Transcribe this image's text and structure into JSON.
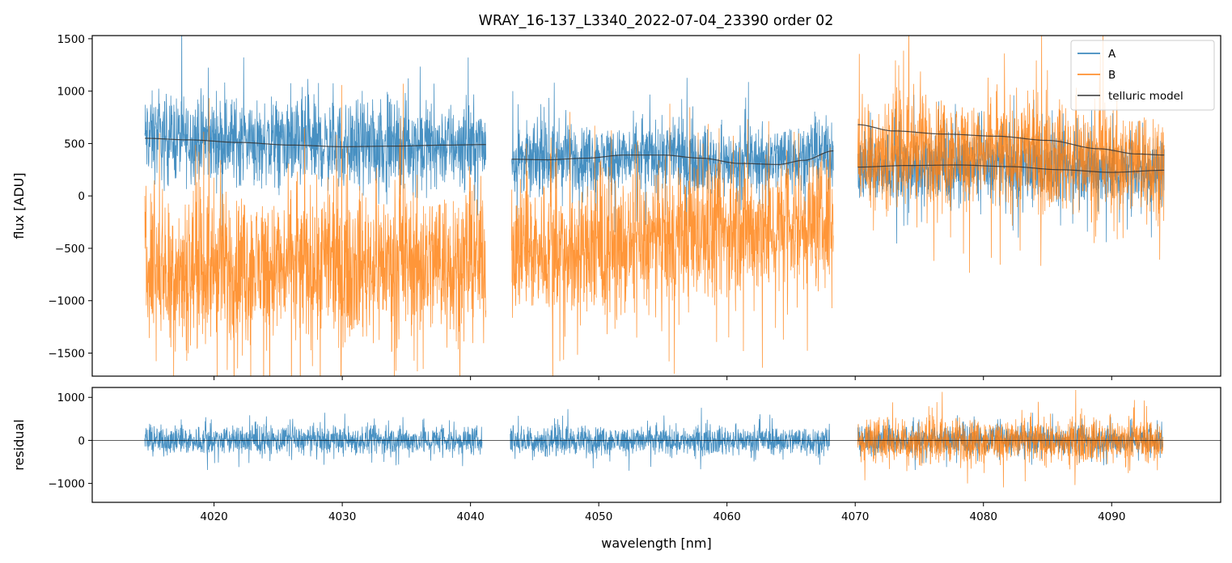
{
  "figure": {
    "title": "WRAY_16-137_L3340_2022-07-04_23390  order 02"
  },
  "chart_data": [
    {
      "type": "line",
      "panel": "flux",
      "title": "WRAY_16-137_L3340_2022-07-04_23390  order 02",
      "xlabel": "",
      "ylabel": "flux [ADU]",
      "xlim": [
        4010.5,
        4098.5
      ],
      "ylim": [
        -1720,
        1530
      ],
      "x_ticks": [
        4020,
        4030,
        4040,
        4050,
        4060,
        4070,
        4080,
        4090
      ],
      "y_ticks": [
        -1500,
        -1000,
        -500,
        0,
        500,
        1000,
        1500
      ],
      "y_tick_labels": [
        "−1500",
        "−1000",
        "−500",
        "0",
        "500",
        "1000",
        "1500"
      ],
      "grid": false,
      "legend_position": "top-right",
      "segments": [
        [
          4014.6,
          4041.2
        ],
        [
          4043.2,
          4068.3
        ],
        [
          4070.2,
          4094.1
        ]
      ],
      "series": [
        {
          "name": "A",
          "color": "#1f77b4",
          "style": "noisy spectrum",
          "segment_levels": [
            {
              "x": [
                4014.6,
                4020,
                4030,
                4041.2
              ],
              "center": [
                560,
                540,
                480,
                490
              ],
              "spread": 520
            },
            {
              "x": [
                4043.2,
                4050,
                4055,
                4060,
                4068.3
              ],
              "center": [
                350,
                360,
                390,
                320,
                420
              ],
              "spread": 400
            },
            {
              "x": [
                4070.2,
                4080,
                4094.1
              ],
              "center": [
                270,
                280,
                240
              ],
              "spread": 420
            }
          ]
        },
        {
          "name": "B",
          "color": "#ff7f0e",
          "style": "noisy spectrum",
          "segment_levels": [
            {
              "x": [
                4014.6,
                4020,
                4030,
                4041.2
              ],
              "center": [
                -650,
                -700,
                -650,
                -600
              ],
              "spread": 900
            },
            {
              "x": [
                4043.2,
                4050,
                4060,
                4068.3
              ],
              "center": [
                -500,
                -520,
                -350,
                -250
              ],
              "spread": 800
            },
            {
              "x": [
                4070.2,
                4080,
                4094.1
              ],
              "center": [
                450,
                420,
                330
              ],
              "spread": 650
            }
          ]
        },
        {
          "name": "telluric model",
          "color": "#333333",
          "style": "smooth",
          "curves": [
            {
              "x": [
                4014.6,
                4018,
                4022,
                4026,
                4030,
                4034,
                4038,
                4041.2
              ],
              "y": [
                550,
                535,
                510,
                485,
                470,
                475,
                485,
                490
              ]
            },
            {
              "x": [
                4043.2,
                4046,
                4049,
                4052,
                4055,
                4058,
                4061,
                4064,
                4066,
                4068.3
              ],
              "y": [
                350,
                345,
                360,
                390,
                390,
                360,
                310,
                300,
                340,
                430
              ]
            },
            {
              "x": [
                4070.2,
                4073,
                4077,
                4081,
                4085,
                4089,
                4092,
                4094.1
              ],
              "y": [
                680,
                620,
                590,
                570,
                530,
                450,
                400,
                390
              ]
            },
            {
              "x": [
                4070.2,
                4074,
                4078,
                4082,
                4086,
                4090,
                4094.1
              ],
              "y": [
                275,
                290,
                295,
                280,
                250,
                225,
                245
              ]
            }
          ]
        }
      ]
    },
    {
      "type": "line",
      "panel": "residual",
      "xlabel": "wavelength [nm]",
      "ylabel": "residual",
      "xlim": [
        4010.5,
        4098.5
      ],
      "ylim": [
        -1440,
        1230
      ],
      "x_ticks": [
        4020,
        4030,
        4040,
        4050,
        4060,
        4070,
        4080,
        4090
      ],
      "x_tick_labels": [
        "4020",
        "4030",
        "4040",
        "4050",
        "4060",
        "4070",
        "4080",
        "4090"
      ],
      "y_ticks": [
        -1000,
        0,
        1000
      ],
      "y_tick_labels": [
        "−1000",
        "0",
        "1000"
      ],
      "reference_line": 0,
      "series": [
        {
          "name": "A",
          "color": "#1f77b4",
          "segments": [
            [
              4014.6,
              4040.9
            ],
            [
              4043.1,
              4068.0
            ],
            [
              4070.2,
              4094.0
            ]
          ],
          "spread": 420
        },
        {
          "name": "B",
          "color": "#ff7f0e",
          "segments": [
            [
              4070.2,
              4094.0
            ]
          ],
          "spread": 650
        }
      ]
    }
  ]
}
